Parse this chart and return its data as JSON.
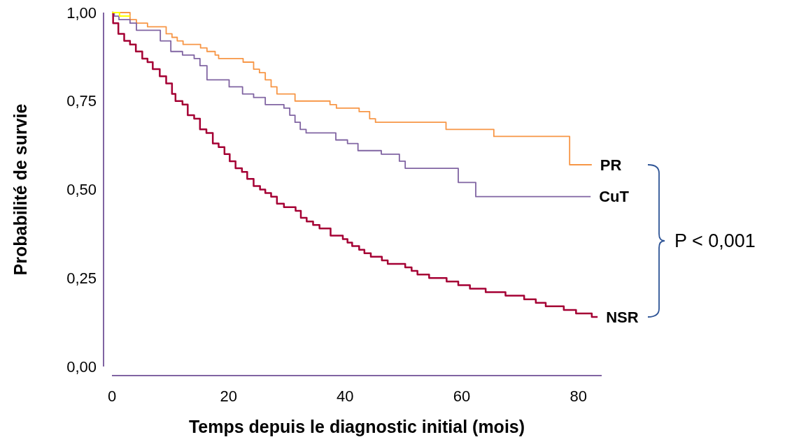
{
  "chart_data": {
    "type": "step",
    "xlabel": "Temps depuis le diagnostic initial (mois)",
    "ylabel": "Probabilité de survie",
    "xlim": [
      0,
      84
    ],
    "xticks": [
      0,
      20,
      40,
      60,
      80
    ],
    "ylim": [
      0,
      1
    ],
    "yticks": [
      {
        "value": 0,
        "label": "0,00"
      },
      {
        "value": 0.25,
        "label": "0,25"
      },
      {
        "value": 0.5,
        "label": "0,50"
      },
      {
        "value": 0.75,
        "label": "0,75"
      },
      {
        "value": 1,
        "label": "1,00"
      }
    ],
    "annotations": [
      "P < 0,001"
    ],
    "series": [
      {
        "color": "#ffff00",
        "x": [
          0,
          1.3,
          3.1
        ],
        "values": [
          1.0,
          0.99,
          0.99
        ]
      },
      {
        "name": "PR",
        "color": "#f79646",
        "x": [
          0,
          3.1,
          4.2,
          5.2,
          6.1,
          7.1,
          9.3,
          10.3,
          11.2,
          12.2,
          14.2,
          15.2,
          16.3,
          17.7,
          18.3,
          21.4,
          22.5,
          24.3,
          25.3,
          26.3,
          27.3,
          28.3,
          29.7,
          31.4,
          37.4,
          38.5,
          42.4,
          44.2,
          45.2,
          57.3,
          65.5,
          78.5,
          82.3
        ],
        "values": [
          1.0,
          0.98,
          0.97,
          0.97,
          0.96,
          0.96,
          0.94,
          0.93,
          0.92,
          0.91,
          0.91,
          0.9,
          0.89,
          0.88,
          0.87,
          0.87,
          0.86,
          0.84,
          0.83,
          0.81,
          0.79,
          0.77,
          0.77,
          0.75,
          0.74,
          0.73,
          0.72,
          0.7,
          0.69,
          0.67,
          0.65,
          0.57,
          0.57
        ]
      },
      {
        "name": "CuT",
        "color": "#8064a2",
        "x": [
          0,
          0.4,
          1.2,
          3.1,
          4.2,
          6.1,
          8.3,
          10.1,
          12.1,
          14.1,
          15.1,
          16.3,
          20.1,
          22.4,
          24.3,
          26.3,
          28.2,
          29.5,
          30.5,
          31.4,
          32.3,
          33.3,
          38.4,
          40.4,
          42.2,
          46.2,
          49.3,
          50.3,
          59.4,
          62.4,
          82.1
        ],
        "values": [
          1.0,
          0.99,
          0.98,
          0.97,
          0.95,
          0.95,
          0.92,
          0.89,
          0.88,
          0.87,
          0.85,
          0.81,
          0.79,
          0.77,
          0.76,
          0.74,
          0.74,
          0.73,
          0.71,
          0.69,
          0.67,
          0.66,
          0.64,
          0.63,
          0.61,
          0.6,
          0.58,
          0.56,
          0.52,
          0.48,
          0.48
        ]
      },
      {
        "name": "NSR",
        "color": "#a50034",
        "x": [
          0,
          0.2,
          1.1,
          2.1,
          3.1,
          4.1,
          5.2,
          6.1,
          7.0,
          8.2,
          9.3,
          10.3,
          10.9,
          12.1,
          13.0,
          14.1,
          15.1,
          16.2,
          17.3,
          18.3,
          19.3,
          20.2,
          21.2,
          22.3,
          23.2,
          24.3,
          25.4,
          26.3,
          27.3,
          28.3,
          29.5,
          30.5,
          31.5,
          32.4,
          33.4,
          34.5,
          35.6,
          36.6,
          37.5,
          38.6,
          39.6,
          40.4,
          41.2,
          42.4,
          43.3,
          44.4,
          45.4,
          46.3,
          47.3,
          48.3,
          49.4,
          50.3,
          51.4,
          52.4,
          53.4,
          54.4,
          55.2,
          56.3,
          57.4,
          58.4,
          59.4,
          60.4,
          61.4,
          63.2,
          64.1,
          65.1,
          66.3,
          67.5,
          68.4,
          70.7,
          71.9,
          72.7,
          73.4,
          74.4,
          75.5,
          77.5,
          78.5,
          79.6,
          81.5,
          82.3,
          83.3
        ],
        "values": [
          1.0,
          0.97,
          0.94,
          0.92,
          0.91,
          0.89,
          0.87,
          0.86,
          0.84,
          0.82,
          0.8,
          0.77,
          0.75,
          0.74,
          0.71,
          0.7,
          0.67,
          0.66,
          0.63,
          0.62,
          0.6,
          0.58,
          0.56,
          0.55,
          0.53,
          0.51,
          0.5,
          0.49,
          0.48,
          0.46,
          0.45,
          0.45,
          0.44,
          0.42,
          0.41,
          0.4,
          0.39,
          0.39,
          0.37,
          0.37,
          0.36,
          0.35,
          0.34,
          0.33,
          0.32,
          0.31,
          0.31,
          0.3,
          0.29,
          0.29,
          0.29,
          0.28,
          0.27,
          0.26,
          0.26,
          0.25,
          0.25,
          0.25,
          0.24,
          0.24,
          0.23,
          0.23,
          0.22,
          0.22,
          0.21,
          0.21,
          0.21,
          0.2,
          0.2,
          0.19,
          0.19,
          0.18,
          0.18,
          0.17,
          0.17,
          0.16,
          0.16,
          0.15,
          0.15,
          0.14,
          0.14
        ]
      }
    ]
  }
}
